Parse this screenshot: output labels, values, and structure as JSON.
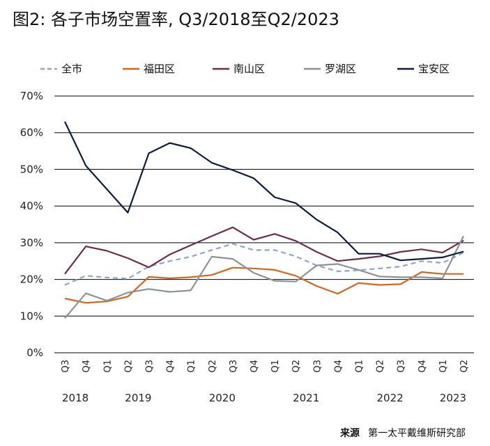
{
  "chart_data": {
    "type": "line",
    "title": "图2: 各子市场空置率, Q3/2018至Q2/2023",
    "categories": [
      "Q3",
      "Q4",
      "Q1",
      "Q2",
      "Q3",
      "Q4",
      "Q1",
      "Q2",
      "Q3",
      "Q4",
      "Q1",
      "Q2",
      "Q3",
      "Q4",
      "Q1",
      "Q2",
      "Q3",
      "Q4",
      "Q1",
      "Q2"
    ],
    "years": [
      {
        "label": "2018",
        "start": 0,
        "end": 1
      },
      {
        "label": "2019",
        "start": 2,
        "end": 5
      },
      {
        "label": "2020",
        "start": 6,
        "end": 9
      },
      {
        "label": "2021",
        "start": 10,
        "end": 13
      },
      {
        "label": "2022",
        "start": 14,
        "end": 17
      },
      {
        "label": "2023",
        "start": 18,
        "end": 19
      }
    ],
    "ylim": [
      0,
      70
    ],
    "yticks": [
      0,
      10,
      20,
      30,
      40,
      50,
      60,
      70
    ],
    "ytick_labels": [
      "0%",
      "10%",
      "20%",
      "30%",
      "40%",
      "50%",
      "60%",
      "70%"
    ],
    "grid": true,
    "legend_position": "top",
    "series": [
      {
        "name": "全市",
        "color": "#8da6c6",
        "dashed": true,
        "values": [
          18.5,
          21.0,
          20.5,
          20.2,
          23.5,
          25.0,
          26.2,
          28.0,
          29.7,
          28.0,
          28.0,
          26.3,
          23.8,
          22.2,
          22.5,
          23.0,
          23.5,
          25.0,
          24.5,
          27.3
        ]
      },
      {
        "name": "福田区",
        "color": "#d4651e",
        "dashed": false,
        "values": [
          14.8,
          13.6,
          14.0,
          15.3,
          20.7,
          20.3,
          20.6,
          21.2,
          23.2,
          23.0,
          22.6,
          21.0,
          18.2,
          16.1,
          19.0,
          18.5,
          18.7,
          22.0,
          21.5,
          21.5
        ]
      },
      {
        "name": "南山区",
        "color": "#6b2c4e",
        "dashed": false,
        "values": [
          21.5,
          29.0,
          27.8,
          25.8,
          23.3,
          26.8,
          29.3,
          31.8,
          34.2,
          30.8,
          32.4,
          30.5,
          27.5,
          25.0,
          25.6,
          26.3,
          27.5,
          28.2,
          27.3,
          30.6
        ]
      },
      {
        "name": "罗湖区",
        "color": "#8c9398",
        "dashed": false,
        "values": [
          9.4,
          16.2,
          14.2,
          16.4,
          17.4,
          16.6,
          17.0,
          26.2,
          25.6,
          21.8,
          19.6,
          19.4,
          23.8,
          24.2,
          22.6,
          20.8,
          20.6,
          20.6,
          20.3,
          31.8
        ]
      },
      {
        "name": "宝安区",
        "color": "#0d1c3e",
        "dashed": false,
        "values": [
          63.0,
          51.0,
          44.6,
          38.2,
          54.4,
          57.2,
          55.8,
          51.8,
          49.8,
          47.6,
          42.4,
          40.8,
          36.3,
          32.8,
          27.0,
          27.0,
          25.2,
          25.6,
          26.0,
          27.6
        ]
      }
    ]
  },
  "source": {
    "label": "来源",
    "text": "第一太平戴维斯研究部"
  }
}
